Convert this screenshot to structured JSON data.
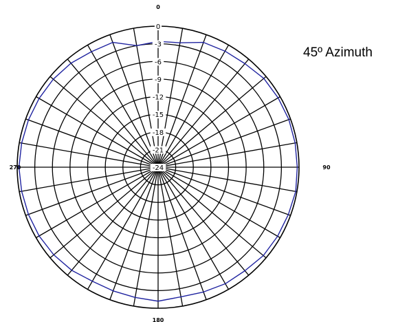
{
  "chart_data": {
    "type": "polar",
    "title": "45º Azimuth",
    "angle_ticks": [
      0,
      90,
      180,
      270
    ],
    "angle_tick_labels": [
      "0",
      "90",
      "180",
      "270"
    ],
    "radial_ticks": [
      0,
      -3,
      -6,
      -9,
      -12,
      -15,
      -18,
      -21,
      -24
    ],
    "radial_tick_labels": [
      "0",
      "-3",
      "-6",
      "-9",
      "-12",
      "-15",
      "-18",
      "-21",
      "-24"
    ],
    "rlim": [
      -24,
      0
    ],
    "angular_grid_step_deg": 10,
    "grid": true,
    "colors": {
      "grid": "#000000",
      "series": "#1f23a0"
    },
    "series": [
      {
        "name": "",
        "theta": [
          0,
          10,
          20,
          30,
          40,
          50,
          60,
          70,
          80,
          90,
          100,
          110,
          120,
          130,
          140,
          150,
          160,
          170,
          180,
          190,
          200,
          210,
          220,
          230,
          240,
          250,
          260,
          270,
          280,
          290,
          300,
          310,
          320,
          330,
          340,
          350
        ],
        "r": [
          -2.6,
          -2.5,
          -1.4,
          -1.2,
          -1.0,
          -0.5,
          -0.4,
          -0.3,
          -0.3,
          -0.3,
          -0.2,
          -0.4,
          -0.5,
          -0.6,
          -1.0,
          -1.1,
          -1.4,
          -1.6,
          -1.2,
          -1.5,
          -1.6,
          -1.6,
          -1.1,
          -0.8,
          -0.6,
          -0.5,
          -0.4,
          -0.3,
          -0.4,
          -0.5,
          -0.6,
          -0.7,
          -0.9,
          -1.3,
          -1.4,
          -3.0
        ]
      }
    ]
  }
}
